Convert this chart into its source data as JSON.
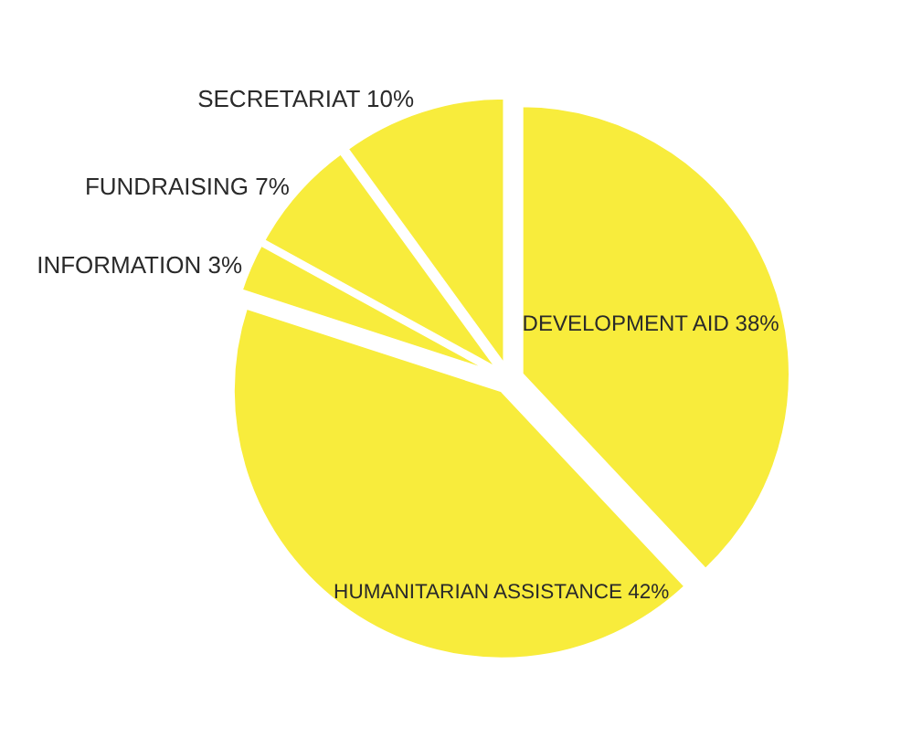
{
  "chart_data": {
    "type": "pie",
    "categories": [
      "DEVELOPMENT AID",
      "HUMANITARIAN ASSISTANCE",
      "INFORMATION",
      "FUNDRAISING",
      "SECRETARIAT"
    ],
    "values": [
      38,
      42,
      3,
      7,
      10
    ],
    "value_labels": [
      "38%",
      "42%",
      "3%",
      "7%",
      "10%"
    ],
    "colors": [
      "#f8ec3c",
      "#f8ec3c",
      "#f8ec3c",
      "#f8ec3c",
      "#f8ec3c"
    ],
    "legend": false
  }
}
